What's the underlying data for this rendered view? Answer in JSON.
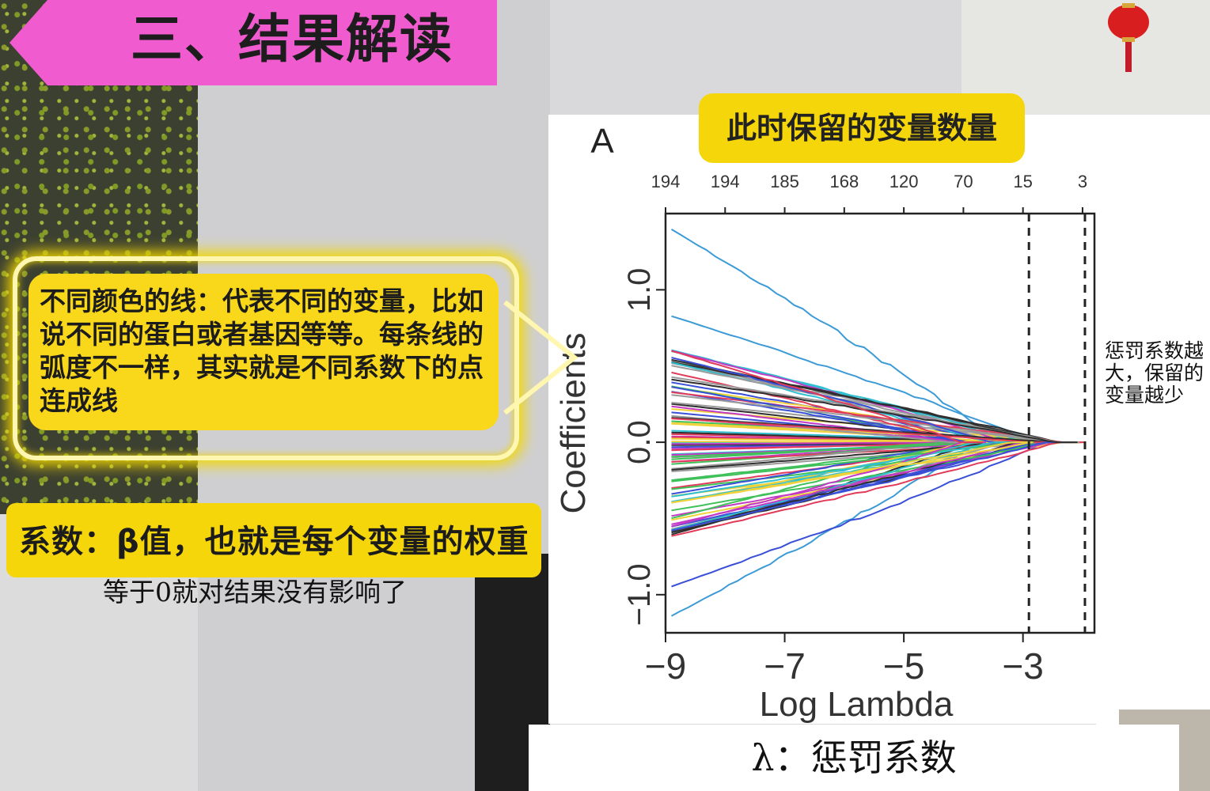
{
  "title": "三、结果解读",
  "badge": "此时保留的变量数量",
  "callout": "不同颜色的线：代表不同的变量，比如说不同的蛋白或者基因等等。每条线的弧度不一样，其实就是不同系数下的点连成线",
  "coefficient_label": "系数：β值，也就是每个变量的权重",
  "zero_note": "等于0就对结果没有影响了",
  "side_note": "惩罚系数越大，保留的变量越少",
  "bottom_caption": "λ：惩罚系数",
  "chart_data": {
    "type": "line",
    "panel_label": "A",
    "xlabel": "Log Lambda",
    "ylabel": "Coefficients",
    "xlim": [
      -9,
      -1.8
    ],
    "ylim": [
      -1.25,
      1.5
    ],
    "x_ticks": [
      -9,
      -7,
      -5,
      -3
    ],
    "y_ticks": [
      -1.0,
      0.0,
      1.0
    ],
    "top_axis_labels": [
      "194",
      "194",
      "185",
      "168",
      "120",
      "70",
      "15",
      "3"
    ],
    "top_axis_x": [
      -9,
      -8,
      -7,
      -6,
      -5,
      -4,
      -3,
      -2
    ],
    "vlines": [
      -2.9,
      -1.96
    ],
    "grid": false
  },
  "colors": {
    "banner": "#f15bd0",
    "yellow": "#f5d60a",
    "series_palette": [
      "#2f2f2f",
      "#e23b5a",
      "#3fc15a",
      "#3a4fd8",
      "#2fbfd0",
      "#c23ac4",
      "#f0d23a",
      "#9a9a9a"
    ]
  }
}
